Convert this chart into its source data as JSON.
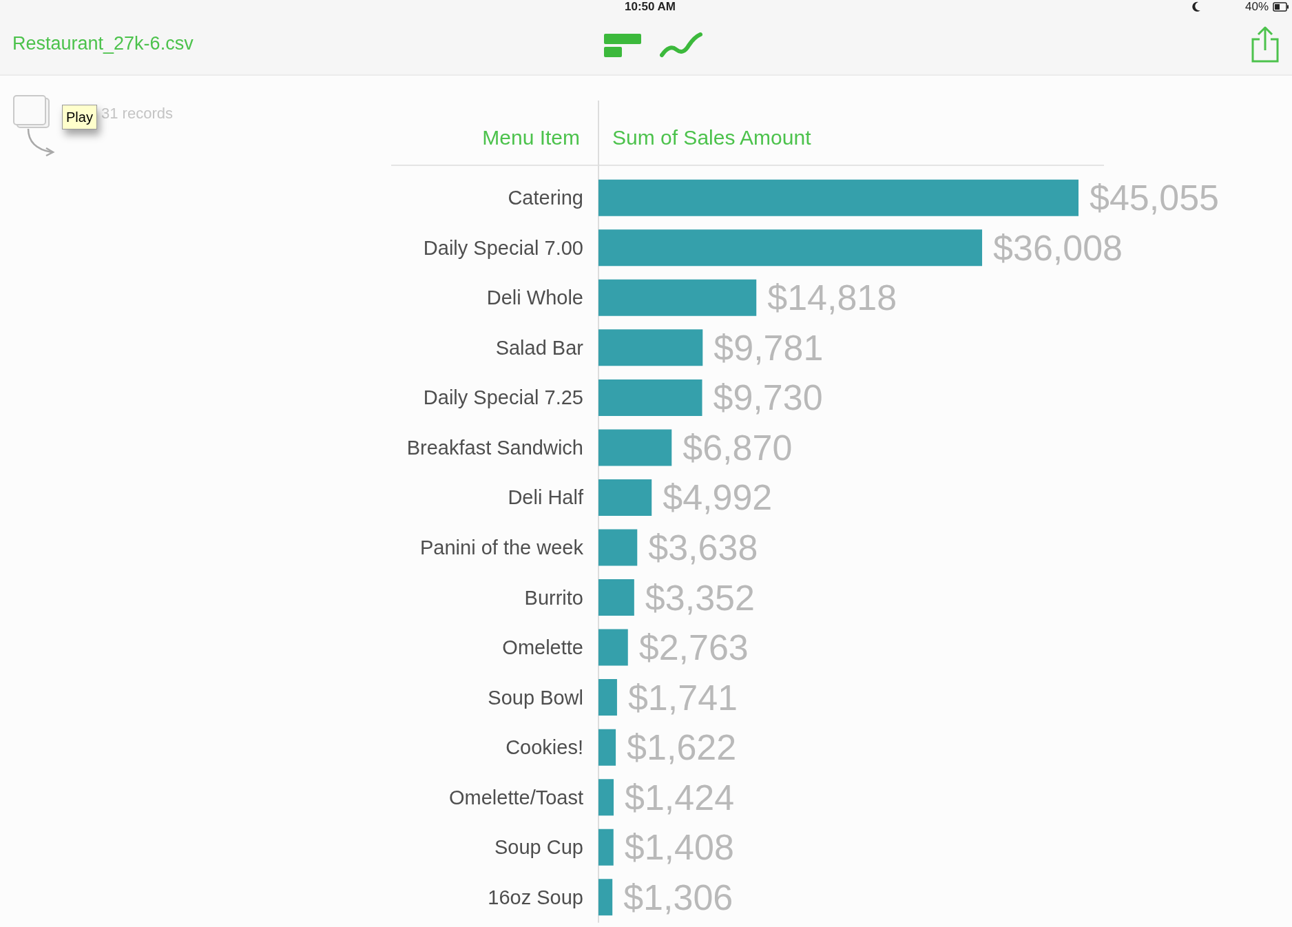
{
  "chart_data": {
    "type": "bar",
    "orientation": "horizontal",
    "title": "Restaurant_27k-6.csv",
    "subtitle": "31 records",
    "ylabel": "Menu Item",
    "xlabel": "Sum of Sales Amount",
    "categories": [
      "Catering",
      "Daily Special 7.00",
      "Deli Whole",
      "Salad Bar",
      "Daily Special 7.25",
      "Breakfast Sandwich",
      "Deli Half",
      "Panini of the week",
      "Burrito",
      "Omelette",
      "Soup Bowl",
      "Cookies!",
      "Omelette/Toast",
      "Soup Cup",
      "16oz Soup"
    ],
    "values": [
      45055,
      36008,
      14818,
      9781,
      9730,
      6870,
      4992,
      3638,
      3352,
      2763,
      1741,
      1622,
      1424,
      1408,
      1306
    ],
    "value_labels": [
      "$45,055",
      "$36,008",
      "$14,818",
      "$9,781",
      "$9,730",
      "$6,870",
      "$4,992",
      "$3,638",
      "$3,352",
      "$2,763",
      "$1,741",
      "$1,622",
      "$1,424",
      "$1,408",
      "$1,306"
    ],
    "color": "#35a0ab",
    "tick_labels": "y",
    "annotations": [
      "10:50 AM",
      "40%",
      "Play"
    ]
  }
}
